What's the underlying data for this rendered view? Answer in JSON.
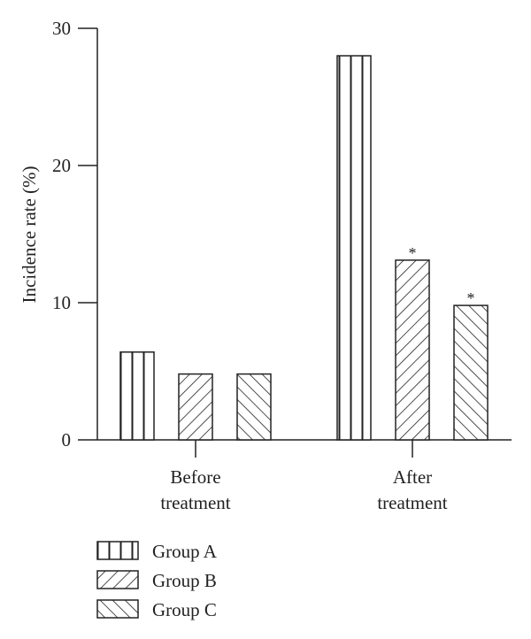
{
  "chart_data": {
    "type": "bar",
    "title": "",
    "xlabel": "",
    "ylabel": "Incidence rate (%)",
    "ylim": [
      0,
      30
    ],
    "yticks": [
      0,
      10,
      20,
      30
    ],
    "grid": false,
    "legend_position": "bottom-left",
    "categories": [
      [
        "Before",
        "treatment"
      ],
      [
        "After",
        "treatment"
      ]
    ],
    "series": [
      {
        "name": "Group A",
        "pattern": "vertical-lines",
        "values": [
          6.4,
          28.0
        ]
      },
      {
        "name": "Group B",
        "pattern": "forward-diagonal",
        "values": [
          4.8,
          13.1
        ]
      },
      {
        "name": "Group C",
        "pattern": "backward-diagonal",
        "values": [
          4.8,
          9.8
        ]
      }
    ],
    "annotations": [
      {
        "text": "*",
        "category": 1,
        "series": 1
      },
      {
        "text": "*",
        "category": 1,
        "series": 2
      }
    ],
    "colors": {
      "stroke": "#222222",
      "fill": "#ffffff"
    }
  }
}
